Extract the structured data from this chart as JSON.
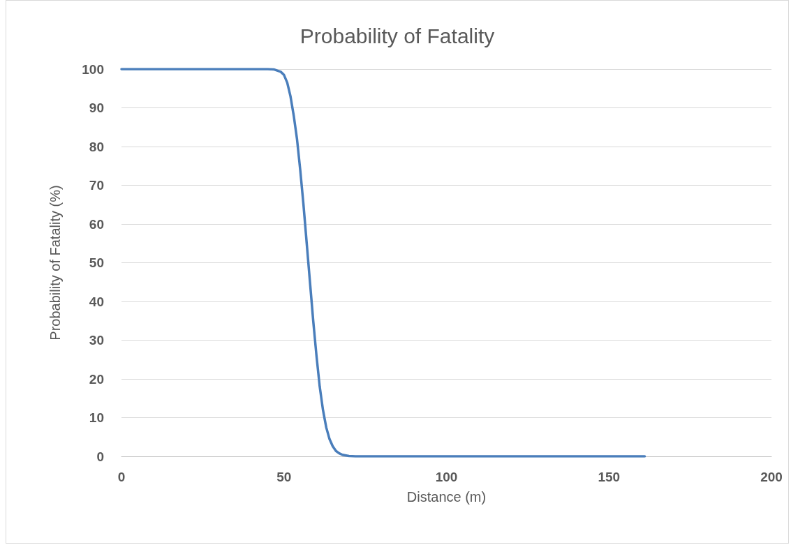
{
  "chart_data": {
    "type": "line",
    "title": "Probability of Fatality",
    "xlabel": "Distance (m)",
    "ylabel": "Probability of Fatality (%)",
    "x": [
      0,
      45,
      47,
      49,
      50,
      51,
      52,
      53,
      54,
      55,
      56,
      57,
      58,
      59,
      60,
      61,
      62,
      63,
      64,
      65,
      66,
      67,
      68,
      70,
      72,
      161
    ],
    "series": [
      {
        "color": "#4a7ebb",
        "values": [
          100,
          100,
          99.9,
          99.3,
          98.5,
          96.5,
          93,
          88,
          82,
          74,
          65,
          55,
          45,
          35,
          26,
          18,
          12,
          7.5,
          4.5,
          2.6,
          1.4,
          0.8,
          0.4,
          0.1,
          0,
          0
        ]
      }
    ],
    "xlim": [
      0,
      200
    ],
    "xticks": [
      0,
      50,
      100,
      150,
      200
    ],
    "ylim": [
      0,
      100
    ],
    "yticks": [
      0,
      10,
      20,
      30,
      40,
      50,
      60,
      70,
      80,
      90,
      100
    ],
    "grid": "y",
    "marker": "none",
    "line_style": "solid"
  }
}
